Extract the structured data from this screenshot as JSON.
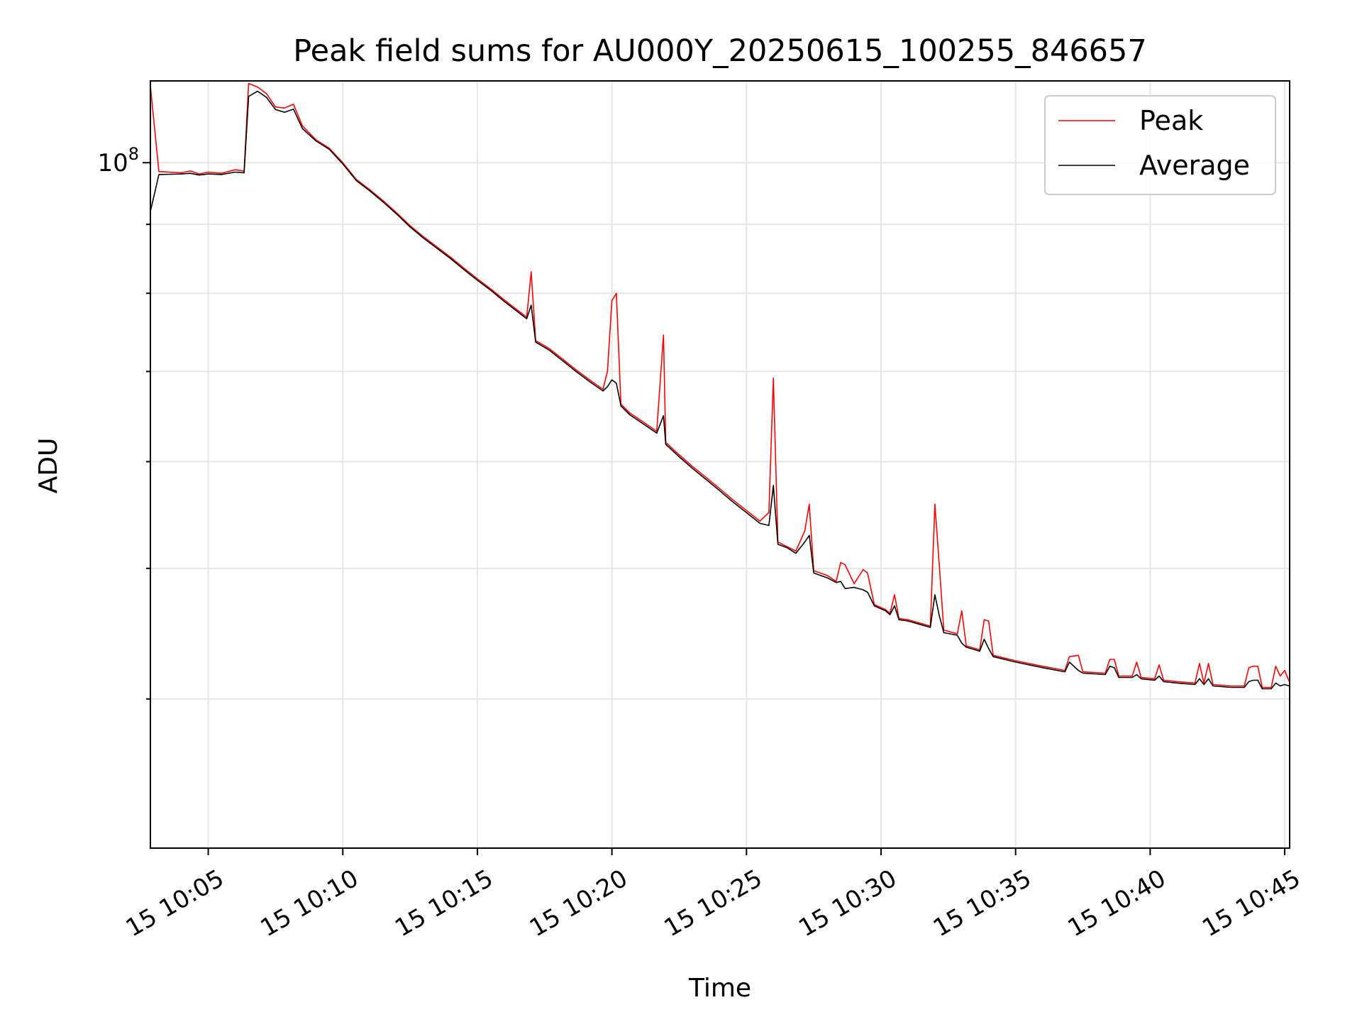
{
  "chart_data": {
    "type": "line",
    "title": "Peak field sums for AU000Y_20250615_100255_846657",
    "xlabel": "Time",
    "ylabel": "ADU",
    "yscale": "log",
    "grid": true,
    "legend_placement": "top-right",
    "xlim": [
      "10:02:51",
      "10:45:11"
    ],
    "ylim": [
      31000000,
      115000000
    ],
    "x_tick_labels": [
      {
        "t": "10:05:00",
        "label": "15 10:05"
      },
      {
        "t": "10:10:00",
        "label": "15 10:10"
      },
      {
        "t": "10:15:00",
        "label": "15 10:15"
      },
      {
        "t": "10:20:00",
        "label": "15 10:20"
      },
      {
        "t": "10:25:00",
        "label": "15 10:25"
      },
      {
        "t": "10:30:00",
        "label": "15 10:30"
      },
      {
        "t": "10:35:00",
        "label": "15 10:35"
      },
      {
        "t": "10:40:00",
        "label": "15 10:40"
      },
      {
        "t": "10:45:00",
        "label": "15 10:45"
      }
    ],
    "y_major_ticks": [
      {
        "value": 100000000,
        "base": "10",
        "exp": "8"
      }
    ],
    "y_minor_ticks": [
      40000000,
      50000000,
      60000000,
      70000000,
      80000000,
      90000000
    ],
    "series": [
      {
        "name": "Peak",
        "color": "#ff0000",
        "points": [
          [
            "10:02:51",
            114000000
          ],
          [
            "10:03:10",
            98500000
          ],
          [
            "10:04:00",
            98300000
          ],
          [
            "10:04:20",
            98600000
          ],
          [
            "10:04:40",
            98100000
          ],
          [
            "10:05:00",
            98400000
          ],
          [
            "10:05:30",
            98200000
          ],
          [
            "10:06:00",
            98800000
          ],
          [
            "10:06:20",
            98600000
          ],
          [
            "10:06:30",
            114500000
          ],
          [
            "10:06:50",
            113800000
          ],
          [
            "10:07:10",
            112500000
          ],
          [
            "10:07:30",
            110000000
          ],
          [
            "10:07:50",
            109800000
          ],
          [
            "10:08:10",
            110500000
          ],
          [
            "10:08:30",
            106500000
          ],
          [
            "10:09:00",
            104000000
          ],
          [
            "10:09:30",
            102500000
          ],
          [
            "10:10:00",
            100000000
          ],
          [
            "10:10:30",
            97200000
          ],
          [
            "10:11:00",
            95500000
          ],
          [
            "10:11:30",
            93700000
          ],
          [
            "10:12:00",
            91800000
          ],
          [
            "10:12:30",
            89800000
          ],
          [
            "10:13:00",
            88100000
          ],
          [
            "10:13:30",
            86600000
          ],
          [
            "10:14:00",
            85100000
          ],
          [
            "10:14:30",
            83500000
          ],
          [
            "10:15:00",
            82000000
          ],
          [
            "10:15:30",
            80600000
          ],
          [
            "10:16:00",
            79100000
          ],
          [
            "10:16:30",
            77700000
          ],
          [
            "10:16:50",
            76800000
          ],
          [
            "10:17:00",
            83000000
          ],
          [
            "10:17:10",
            73800000
          ],
          [
            "10:17:40",
            72800000
          ],
          [
            "10:18:10",
            71500000
          ],
          [
            "10:18:40",
            70200000
          ],
          [
            "10:19:10",
            69000000
          ],
          [
            "10:19:40",
            67900000
          ],
          [
            "10:19:50",
            70000000
          ],
          [
            "10:20:00",
            79000000
          ],
          [
            "10:20:10",
            80000000
          ],
          [
            "10:20:20",
            66200000
          ],
          [
            "10:20:40",
            65200000
          ],
          [
            "10:21:10",
            64200000
          ],
          [
            "10:21:40",
            63200000
          ],
          [
            "10:21:55",
            74500000
          ],
          [
            "10:22:00",
            62000000
          ],
          [
            "10:22:30",
            60700000
          ],
          [
            "10:23:00",
            59500000
          ],
          [
            "10:23:30",
            58400000
          ],
          [
            "10:24:00",
            57300000
          ],
          [
            "10:24:30",
            56200000
          ],
          [
            "10:25:00",
            55200000
          ],
          [
            "10:25:30",
            54200000
          ],
          [
            "10:25:50",
            55000000
          ],
          [
            "10:26:00",
            69200000
          ],
          [
            "10:26:10",
            52300000
          ],
          [
            "10:26:30",
            51900000
          ],
          [
            "10:26:50",
            51500000
          ],
          [
            "10:27:10",
            53300000
          ],
          [
            "10:27:20",
            55800000
          ],
          [
            "10:27:30",
            49800000
          ],
          [
            "10:28:00",
            49400000
          ],
          [
            "10:28:20",
            48900000
          ],
          [
            "10:28:30",
            50500000
          ],
          [
            "10:28:40",
            50300000
          ],
          [
            "10:29:00",
            48700000
          ],
          [
            "10:29:20",
            49900000
          ],
          [
            "10:29:30",
            49600000
          ],
          [
            "10:29:45",
            47000000
          ],
          [
            "10:30:10",
            46600000
          ],
          [
            "10:30:20",
            46300000
          ],
          [
            "10:30:30",
            47800000
          ],
          [
            "10:30:40",
            45900000
          ],
          [
            "10:31:00",
            45800000
          ],
          [
            "10:31:40",
            45400000
          ],
          [
            "10:31:50",
            45300000
          ],
          [
            "10:32:00",
            55800000
          ],
          [
            "10:32:10",
            50200000
          ],
          [
            "10:32:20",
            45000000
          ],
          [
            "10:32:50",
            44700000
          ],
          [
            "10:33:00",
            46500000
          ],
          [
            "10:33:10",
            43800000
          ],
          [
            "10:33:40",
            43500000
          ],
          [
            "10:33:50",
            45800000
          ],
          [
            "10:34:00",
            45700000
          ],
          [
            "10:34:10",
            43100000
          ],
          [
            "10:35:00",
            42700000
          ],
          [
            "10:36:00",
            42300000
          ],
          [
            "10:36:50",
            42000000
          ],
          [
            "10:37:00",
            43000000
          ],
          [
            "10:37:20",
            43100000
          ],
          [
            "10:37:30",
            41900000
          ],
          [
            "10:38:20",
            41800000
          ],
          [
            "10:38:30",
            42800000
          ],
          [
            "10:38:40",
            42800000
          ],
          [
            "10:38:50",
            41600000
          ],
          [
            "10:39:20",
            41600000
          ],
          [
            "10:39:30",
            42600000
          ],
          [
            "10:39:40",
            41500000
          ],
          [
            "10:40:10",
            41400000
          ],
          [
            "10:40:20",
            42400000
          ],
          [
            "10:40:30",
            41300000
          ],
          [
            "10:41:00",
            41200000
          ],
          [
            "10:41:40",
            41100000
          ],
          [
            "10:41:50",
            42500000
          ],
          [
            "10:42:00",
            41100000
          ],
          [
            "10:42:10",
            42500000
          ],
          [
            "10:42:20",
            41000000
          ],
          [
            "10:43:00",
            40900000
          ],
          [
            "10:43:30",
            40900000
          ],
          [
            "10:43:40",
            42200000
          ],
          [
            "10:43:50",
            42300000
          ],
          [
            "10:44:00",
            42300000
          ],
          [
            "10:44:10",
            40800000
          ],
          [
            "10:44:30",
            40800000
          ],
          [
            "10:44:40",
            42300000
          ],
          [
            "10:44:50",
            41600000
          ],
          [
            "10:45:00",
            42000000
          ],
          [
            "10:45:10",
            41200000
          ]
        ]
      },
      {
        "name": "Average",
        "color": "#000000",
        "points": [
          [
            "10:02:51",
            92000000
          ],
          [
            "10:03:10",
            98000000
          ],
          [
            "10:04:00",
            98100000
          ],
          [
            "10:04:20",
            98200000
          ],
          [
            "10:04:40",
            97900000
          ],
          [
            "10:05:00",
            98100000
          ],
          [
            "10:05:30",
            98000000
          ],
          [
            "10:06:00",
            98400000
          ],
          [
            "10:06:20",
            98300000
          ],
          [
            "10:06:30",
            112000000
          ],
          [
            "10:06:50",
            113000000
          ],
          [
            "10:07:10",
            111800000
          ],
          [
            "10:07:30",
            109500000
          ],
          [
            "10:07:50",
            109000000
          ],
          [
            "10:08:10",
            109600000
          ],
          [
            "10:08:30",
            106000000
          ],
          [
            "10:09:00",
            103800000
          ],
          [
            "10:09:30",
            102300000
          ],
          [
            "10:10:00",
            99800000
          ],
          [
            "10:10:30",
            97000000
          ],
          [
            "10:11:00",
            95300000
          ],
          [
            "10:11:30",
            93500000
          ],
          [
            "10:12:00",
            91600000
          ],
          [
            "10:12:30",
            89600000
          ],
          [
            "10:13:00",
            87900000
          ],
          [
            "10:13:30",
            86400000
          ],
          [
            "10:14:00",
            84900000
          ],
          [
            "10:14:30",
            83300000
          ],
          [
            "10:15:00",
            81800000
          ],
          [
            "10:15:30",
            80400000
          ],
          [
            "10:16:00",
            78900000
          ],
          [
            "10:16:30",
            77500000
          ],
          [
            "10:16:50",
            76600000
          ],
          [
            "10:17:00",
            78400000
          ],
          [
            "10:17:10",
            73600000
          ],
          [
            "10:17:40",
            72600000
          ],
          [
            "10:18:10",
            71300000
          ],
          [
            "10:18:40",
            70000000
          ],
          [
            "10:19:10",
            68800000
          ],
          [
            "10:19:40",
            67700000
          ],
          [
            "10:19:50",
            68200000
          ],
          [
            "10:20:00",
            69000000
          ],
          [
            "10:20:10",
            68600000
          ],
          [
            "10:20:20",
            66000000
          ],
          [
            "10:20:40",
            65000000
          ],
          [
            "10:21:10",
            64000000
          ],
          [
            "10:21:40",
            63000000
          ],
          [
            "10:21:55",
            64900000
          ],
          [
            "10:22:00",
            61800000
          ],
          [
            "10:22:30",
            60500000
          ],
          [
            "10:23:00",
            59300000
          ],
          [
            "10:23:30",
            58200000
          ],
          [
            "10:24:00",
            57100000
          ],
          [
            "10:24:30",
            56000000
          ],
          [
            "10:25:00",
            55000000
          ],
          [
            "10:25:30",
            54000000
          ],
          [
            "10:25:50",
            53800000
          ],
          [
            "10:26:00",
            57600000
          ],
          [
            "10:26:10",
            52100000
          ],
          [
            "10:26:30",
            51800000
          ],
          [
            "10:26:50",
            51300000
          ],
          [
            "10:27:10",
            52300000
          ],
          [
            "10:27:20",
            52900000
          ],
          [
            "10:27:30",
            49600000
          ],
          [
            "10:28:00",
            49200000
          ],
          [
            "10:28:20",
            48800000
          ],
          [
            "10:28:30",
            48900000
          ],
          [
            "10:28:40",
            48300000
          ],
          [
            "10:29:00",
            48400000
          ],
          [
            "10:29:20",
            48200000
          ],
          [
            "10:29:30",
            48000000
          ],
          [
            "10:29:45",
            46900000
          ],
          [
            "10:30:10",
            46500000
          ],
          [
            "10:30:20",
            46200000
          ],
          [
            "10:30:30",
            46900000
          ],
          [
            "10:30:40",
            45800000
          ],
          [
            "10:31:00",
            45700000
          ],
          [
            "10:31:40",
            45300000
          ],
          [
            "10:31:50",
            45200000
          ],
          [
            "10:32:00",
            47800000
          ],
          [
            "10:32:10",
            46100000
          ],
          [
            "10:32:20",
            44800000
          ],
          [
            "10:32:50",
            44600000
          ],
          [
            "10:33:00",
            44000000
          ],
          [
            "10:33:10",
            43700000
          ],
          [
            "10:33:40",
            43400000
          ],
          [
            "10:33:50",
            44300000
          ],
          [
            "10:34:00",
            43600000
          ],
          [
            "10:34:10",
            43000000
          ],
          [
            "10:35:00",
            42600000
          ],
          [
            "10:36:00",
            42200000
          ],
          [
            "10:36:50",
            41900000
          ],
          [
            "10:37:00",
            42600000
          ],
          [
            "10:37:20",
            42000000
          ],
          [
            "10:37:30",
            41800000
          ],
          [
            "10:38:20",
            41700000
          ],
          [
            "10:38:30",
            42300000
          ],
          [
            "10:38:40",
            42200000
          ],
          [
            "10:38:50",
            41500000
          ],
          [
            "10:39:20",
            41500000
          ],
          [
            "10:39:30",
            41700000
          ],
          [
            "10:39:40",
            41400000
          ],
          [
            "10:40:10",
            41300000
          ],
          [
            "10:40:20",
            41600000
          ],
          [
            "10:40:30",
            41200000
          ],
          [
            "10:41:00",
            41100000
          ],
          [
            "10:41:40",
            41000000
          ],
          [
            "10:41:50",
            41400000
          ],
          [
            "10:42:00",
            41000000
          ],
          [
            "10:42:10",
            41400000
          ],
          [
            "10:42:20",
            40900000
          ],
          [
            "10:43:00",
            40800000
          ],
          [
            "10:43:30",
            40800000
          ],
          [
            "10:43:40",
            41200000
          ],
          [
            "10:43:50",
            41300000
          ],
          [
            "10:44:00",
            41300000
          ],
          [
            "10:44:10",
            40700000
          ],
          [
            "10:44:30",
            40700000
          ],
          [
            "10:44:40",
            41100000
          ],
          [
            "10:44:50",
            40900000
          ],
          [
            "10:45:00",
            41000000
          ],
          [
            "10:45:10",
            40900000
          ]
        ]
      }
    ]
  }
}
